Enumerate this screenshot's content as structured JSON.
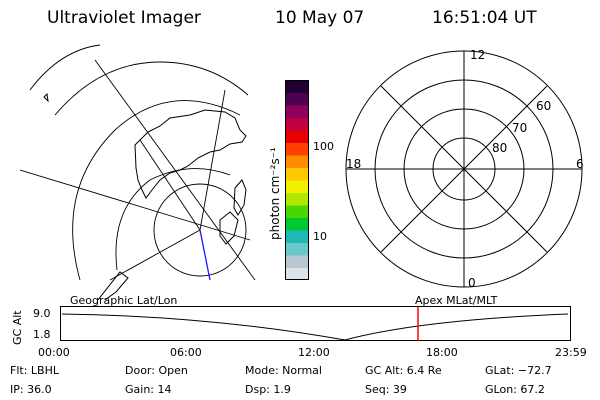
{
  "header": {
    "instrument": "Ultraviolet Imager",
    "date": "10 May 07",
    "time": "16:51:04 UT"
  },
  "colorbar": {
    "unit_label": "photon cm⁻²s⁻¹",
    "ticks": [
      "100",
      "10"
    ],
    "colors": [
      "#dde4e8",
      "#b8c8d0",
      "#6cc8c8",
      "#1fb8b8",
      "#00c830",
      "#48d800",
      "#b0e800",
      "#f0f000",
      "#ffc800",
      "#ff8c00",
      "#ff4000",
      "#e80000",
      "#c00040",
      "#900060",
      "#500050",
      "#200030"
    ]
  },
  "polar": {
    "mlt_labels": [
      "12",
      "18",
      "6",
      "0"
    ],
    "lat_labels": [
      "60",
      "70",
      "80"
    ]
  },
  "timeline": {
    "left_label": "Geographic Lat/Lon",
    "right_label": "Apex MLat/MLT",
    "axis_title": "GC Alt",
    "y_ticks": [
      "9.0",
      "1.8"
    ],
    "x_ticks": [
      "00:00",
      "06:00",
      "12:00",
      "18:00",
      "23:59"
    ],
    "marker_color": "#ff0000"
  },
  "info": {
    "filter": "Flt: LBHL",
    "ip": "IP: 36.0",
    "door": "Door: Open",
    "gain": "Gain: 14",
    "mode": "Mode: Normal",
    "dsp": "Dsp:     1.9",
    "gc_alt": "GC Alt: 6.4 Re",
    "seq": "Seq: 39",
    "glat": "GLat: −72.7",
    "glon": "GLon:  67.2"
  }
}
